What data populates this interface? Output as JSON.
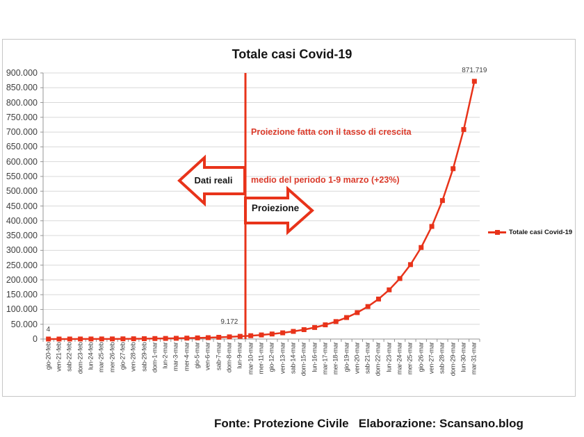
{
  "chart": {
    "title": "Totale casi Covid-19",
    "annotation_line1": "Proiezione fatta con il tasso di crescita",
    "annotation_line2": "medio del periodo 1-9 marzo (+23%)",
    "left_arrow_label": "Dati reali",
    "right_arrow_label": "Proiezione",
    "legend_label": "Totale casi Covid-19"
  },
  "callouts": [
    {
      "index": 0,
      "text": "4",
      "align": "left"
    },
    {
      "index": 18,
      "text": "9.172",
      "align": "right"
    },
    {
      "index": 40,
      "text": "871.719",
      "align": "center"
    }
  ],
  "footer": "Fonte: Protezione Civile   Elaborazione: Scansano.blog",
  "colors": {
    "series_red": "#E8331A",
    "annotation_red": "#DA3A2A",
    "axis_text": "#3E3E3E",
    "text_black": "#151515",
    "gridline": "#D8D8D8",
    "axis_line": "#949494",
    "frame_border": "#C6C6C6"
  },
  "chart_data": {
    "type": "line",
    "title": "Totale casi Covid-19",
    "legend_position": "right",
    "grid": true,
    "ylim": [
      0,
      900000
    ],
    "ytick_step": 50000,
    "ytick_labels": [
      "0",
      "50.000",
      "100.000",
      "150.000",
      "200.000",
      "250.000",
      "300.000",
      "350.000",
      "400.000",
      "450.000",
      "500.000",
      "550.000",
      "600.000",
      "650.000",
      "700.000",
      "750.000",
      "800.000",
      "850.000",
      "900.000"
    ],
    "categories": [
      "gio-20-feb",
      "ven-21-feb",
      "sab-22-feb",
      "dom-23-feb",
      "lun-24-feb",
      "mar-25-feb",
      "mer-26-feb",
      "gio-27-feb",
      "ven-28-feb",
      "sab-29-feb",
      "dom-1-mar",
      "lun-2-mar",
      "mar-3-mar",
      "mer-4-mar",
      "gio-5-mar",
      "ven-6-mar",
      "sab-7-mar",
      "dom-8-mar",
      "lun-9-mar",
      "mar-10-mar",
      "mer-11-mar",
      "gio-12-mar",
      "ven-13-mar",
      "sab-14-mar",
      "dom-15-mar",
      "lun-16-mar",
      "mar-17-mar",
      "mer-18-mar",
      "gio-19-mar",
      "ven-20-mar",
      "sab-21-mar",
      "dom-22-mar",
      "lun-23-mar",
      "mar-24-mar",
      "mer-25-mar",
      "gio-26-mar",
      "ven-27-mar",
      "sab-28-mar",
      "dom-29-mar",
      "lun-30-mar",
      "mar-31-mar"
    ],
    "series": [
      {
        "name": "Totale casi Covid-19",
        "values": [
          4,
          21,
          79,
          157,
          229,
          322,
          400,
          650,
          888,
          1128,
          1694,
          2036,
          2502,
          3089,
          3858,
          4636,
          5883,
          7375,
          9172,
          11282,
          13876,
          17068,
          20993,
          25822,
          31761,
          39066,
          48051,
          59103,
          72697,
          89417,
          109983,
          135279,
          166393,
          204664,
          251736,
          309636,
          380852,
          468448,
          576190,
          708714,
          871719
        ]
      }
    ],
    "divider_after_index": 18,
    "projection_growth_rate": "+23%"
  }
}
